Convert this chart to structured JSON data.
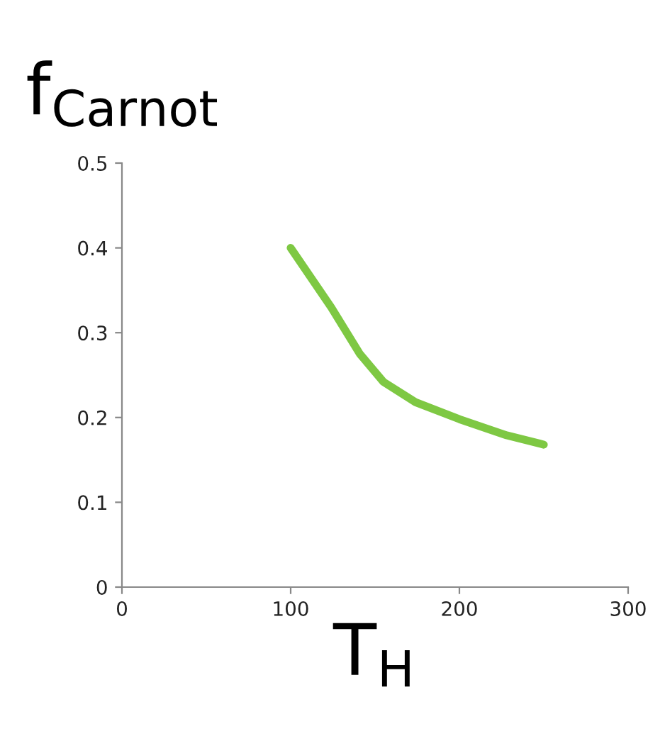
{
  "chart_data": {
    "type": "line",
    "ylabel": "f$_{Carnot}$",
    "xlabel": "T$_{H}$",
    "x": [
      100,
      124,
      141,
      155,
      174,
      200,
      228,
      250
    ],
    "series": [
      {
        "color": "#7ec843",
        "values": [
          0.4,
          0.33,
          0.275,
          0.242,
          0.218,
          0.198,
          0.179,
          0.168
        ]
      }
    ],
    "xlim": [
      0,
      300
    ],
    "xticks": [
      0,
      100,
      200,
      300
    ],
    "ylim": [
      0,
      0.5
    ],
    "yticks": [
      0,
      0.1,
      0.2,
      0.3,
      0.4,
      0.5
    ],
    "grid": false,
    "marker": "none",
    "line_style": "solid"
  }
}
